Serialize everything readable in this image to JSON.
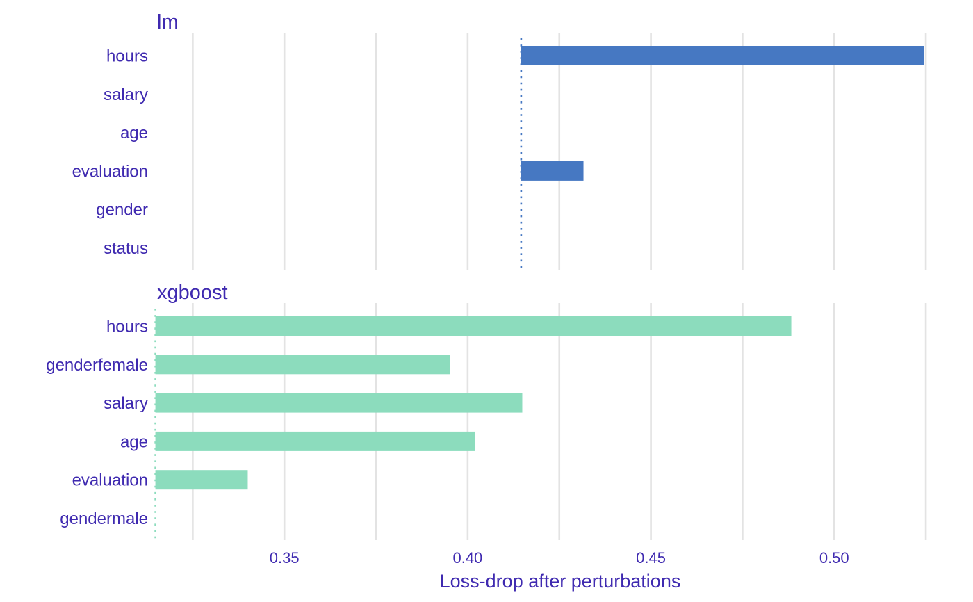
{
  "chart_data": {
    "type": "bar",
    "orientation": "horizontal",
    "xlabel": "Loss-drop after perturbations",
    "xlim": [
      0.3145,
      0.5265
    ],
    "xticks": [
      0.35,
      0.4,
      0.45,
      0.5
    ],
    "xtick_labels": [
      "0.35",
      "0.40",
      "0.45",
      "0.50"
    ],
    "grid": true,
    "label_color": "#3f2ab0",
    "facets": [
      {
        "title": "lm",
        "baseline": 0.4146,
        "color": "#4678c2",
        "categories": [
          "hours",
          "salary",
          "age",
          "evaluation",
          "gender",
          "status"
        ],
        "values": [
          0.5245,
          0.4146,
          0.4146,
          0.4316,
          0.4146,
          0.4146
        ]
      },
      {
        "title": "xgboost",
        "baseline": 0.3148,
        "color": "#8cdcbd",
        "categories": [
          "hours",
          "genderfemale",
          "salary",
          "age",
          "evaluation",
          "gendermale"
        ],
        "values": [
          0.4883,
          0.3952,
          0.4149,
          0.4021,
          0.34,
          0.3148
        ]
      }
    ]
  }
}
